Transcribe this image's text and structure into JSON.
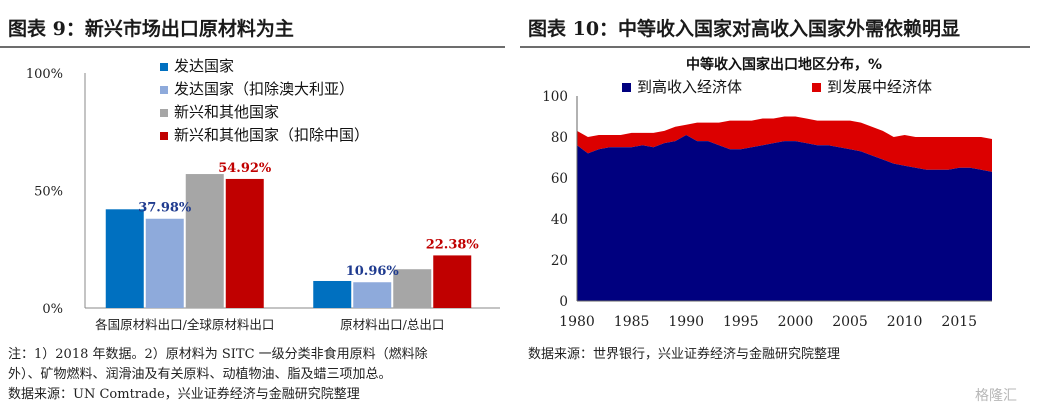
{
  "left": {
    "title": "图表 9：新兴市场出口原材料为主",
    "notes": [
      "注：1）2018 年数据。2）原材料为 SITC 一级分类非食用原料（燃料除",
      "外）、矿物燃料、润滑油及有关原料、动植物油、脂及蜡三项加总。"
    ],
    "source": "数据来源：UN Comtrade，兴业证券经济与金融研究院整理"
  },
  "right": {
    "title": "图表 10：中等收入国家对高收入国家外需依赖明显",
    "source": "数据来源：世界银行，兴业证券经济与金融研究院整理"
  },
  "watermark": "格隆汇",
  "chart_data": [
    {
      "type": "bar",
      "categories": [
        "各国原材料出口/全球原材料出口",
        "原材料出口/总出口"
      ],
      "series": [
        {
          "name": "发达国家",
          "color": "#0070c0",
          "values": [
            42,
            11.5
          ]
        },
        {
          "name": "发达国家（扣除澳大利亚）",
          "color": "#8eaadb",
          "values": [
            37.98,
            10.96
          ]
        },
        {
          "name": "新兴和其他国家",
          "color": "#a6a6a6",
          "values": [
            57,
            16.5
          ]
        },
        {
          "name": "新兴和其他国家（扣除中国）",
          "color": "#c00000",
          "values": [
            54.92,
            22.38
          ]
        }
      ],
      "data_labels": [
        {
          "series": 1,
          "category": 0,
          "text": "37.98%",
          "color": "#1f3b8f"
        },
        {
          "series": 3,
          "category": 0,
          "text": "54.92%",
          "color": "#c00000"
        },
        {
          "series": 1,
          "category": 1,
          "text": "10.96%",
          "color": "#1f3b8f"
        },
        {
          "series": 3,
          "category": 1,
          "text": "22.38%",
          "color": "#c00000"
        }
      ],
      "yticks": [
        "0%",
        "50%",
        "100%"
      ],
      "ylim": [
        0,
        100
      ],
      "legend_position": "top-right"
    },
    {
      "type": "area",
      "title": "中等收入国家出口地区分布，%",
      "x": [
        1980,
        1981,
        1982,
        1983,
        1984,
        1985,
        1986,
        1987,
        1988,
        1989,
        1990,
        1991,
        1992,
        1993,
        1994,
        1995,
        1996,
        1997,
        1998,
        1999,
        2000,
        2001,
        2002,
        2003,
        2004,
        2005,
        2006,
        2007,
        2008,
        2009,
        2010,
        2011,
        2012,
        2013,
        2014,
        2015,
        2016,
        2017,
        2018
      ],
      "series": [
        {
          "name": "到高收入经济体",
          "color": "#00007f",
          "values": [
            76,
            72,
            74,
            75,
            75,
            75,
            76,
            75,
            77,
            78,
            81,
            78,
            78,
            76,
            74,
            74,
            75,
            76,
            77,
            78,
            78,
            77,
            76,
            76,
            75,
            74,
            73,
            71,
            69,
            67,
            66,
            65,
            64,
            64,
            64,
            65,
            65,
            64,
            63
          ]
        },
        {
          "name": "到发展中经济体",
          "color": "#dc0000",
          "values": [
            7,
            8,
            7,
            6,
            6,
            7,
            6,
            7,
            6,
            7,
            5,
            9,
            9,
            11,
            14,
            14,
            13,
            13,
            12,
            12,
            12,
            12,
            12,
            12,
            13,
            14,
            14,
            14,
            14,
            13,
            15,
            15,
            16,
            16,
            16,
            15,
            15,
            16,
            16
          ]
        }
      ],
      "xticks": [
        1980,
        1985,
        1990,
        1995,
        2000,
        2005,
        2010,
        2015
      ],
      "yticks": [
        0,
        20,
        40,
        60,
        80,
        100
      ],
      "ylim": [
        0,
        100
      ],
      "legend_position": "top-left"
    }
  ]
}
